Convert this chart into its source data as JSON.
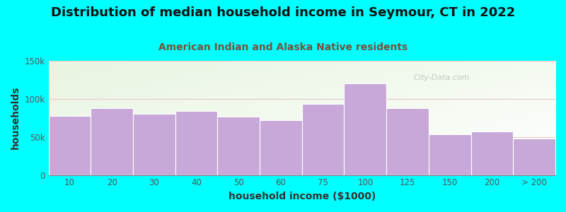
{
  "title": "Distribution of median household income in Seymour, CT in 2022",
  "subtitle": "American Indian and Alaska Native residents",
  "xlabel": "household income ($1000)",
  "ylabel": "households",
  "background_color": "#00FFFF",
  "bar_color": "#c8a8d8",
  "bar_edge_color": "#ffffff",
  "categories": [
    "10",
    "20",
    "30",
    "40",
    "50",
    "60",
    "75",
    "100",
    "125",
    "150",
    "200",
    "> 200"
  ],
  "values": [
    78000,
    88000,
    80000,
    84000,
    77000,
    72000,
    93000,
    120000,
    88000,
    53000,
    57000,
    48000
  ],
  "ylim": [
    0,
    150000
  ],
  "yticks": [
    0,
    50000,
    100000,
    150000
  ],
  "ytick_labels": [
    "0",
    "50k",
    "100k",
    "150k"
  ],
  "title_fontsize": 13,
  "subtitle_fontsize": 10,
  "axis_label_fontsize": 10,
  "tick_fontsize": 8.5,
  "title_color": "#111111",
  "subtitle_color": "#7b4f3a",
  "watermark_text": "City-Data.com",
  "watermark_color": "#b0b0b0",
  "grid_color": "#e8c8c8",
  "spine_color": "#888888"
}
